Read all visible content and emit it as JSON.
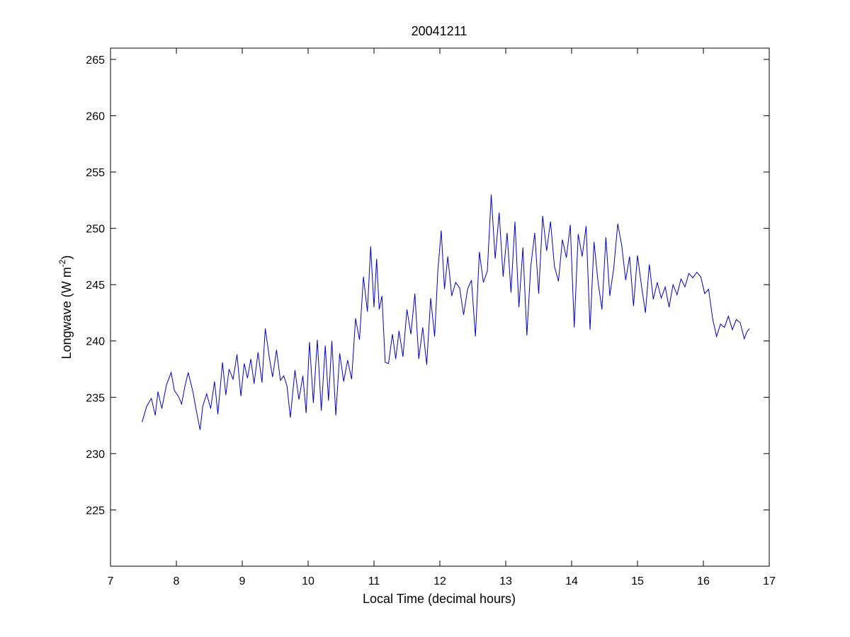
{
  "chart_data": {
    "type": "line",
    "title": "20041211",
    "xlabel": "Local Time (decimal hours)",
    "ylabel_main": "Longwave (W m",
    "ylabel_sup": "-2",
    "ylabel_close": ")",
    "xlim": [
      7,
      17
    ],
    "ylim": [
      220,
      266
    ],
    "xticks": [
      7,
      8,
      9,
      10,
      11,
      12,
      13,
      14,
      15,
      16,
      17
    ],
    "yticks": [
      225,
      230,
      235,
      240,
      245,
      250,
      255,
      260,
      265
    ],
    "grid": false,
    "line_color": "#0000cc",
    "series": [
      {
        "x": [
          7.48,
          7.55,
          7.62,
          7.68,
          7.72,
          7.78,
          7.85,
          7.92,
          7.97,
          8.03,
          8.08,
          8.13,
          8.18,
          8.25,
          8.3,
          8.36,
          8.4,
          8.46,
          8.52,
          8.58,
          8.63,
          8.7,
          8.75,
          8.8,
          8.86,
          8.92,
          8.98,
          9.03,
          9.08,
          9.13,
          9.18,
          9.24,
          9.3,
          9.35,
          9.41,
          9.46,
          9.52,
          9.58,
          9.63,
          9.68,
          9.73,
          9.8,
          9.86,
          9.92,
          9.97,
          10.02,
          10.08,
          10.14,
          10.2,
          10.26,
          10.31,
          10.36,
          10.42,
          10.48,
          10.54,
          10.6,
          10.66,
          10.72,
          10.78,
          10.84,
          10.9,
          10.95,
          11.0,
          11.04,
          11.08,
          11.12,
          11.17,
          11.22,
          11.28,
          11.33,
          11.38,
          11.44,
          11.5,
          11.56,
          11.62,
          11.68,
          11.74,
          11.8,
          11.86,
          11.92,
          11.97,
          12.02,
          12.07,
          12.12,
          12.18,
          12.24,
          12.3,
          12.36,
          12.42,
          12.48,
          12.54,
          12.6,
          12.66,
          12.72,
          12.78,
          12.84,
          12.9,
          12.96,
          13.02,
          13.08,
          13.14,
          13.2,
          13.26,
          13.32,
          13.38,
          13.44,
          13.5,
          13.56,
          13.62,
          13.68,
          13.74,
          13.8,
          13.86,
          13.92,
          13.98,
          14.04,
          14.1,
          14.16,
          14.22,
          14.28,
          14.34,
          14.4,
          14.46,
          14.52,
          14.58,
          14.64,
          14.7,
          14.76,
          14.82,
          14.88,
          14.94,
          15.0,
          15.06,
          15.12,
          15.18,
          15.24,
          15.3,
          15.36,
          15.42,
          15.48,
          15.54,
          15.6,
          15.66,
          15.72,
          15.78,
          15.84,
          15.9,
          15.96,
          16.02,
          16.08,
          16.14,
          16.2,
          16.26,
          16.32,
          16.38,
          16.44,
          16.5,
          16.56,
          16.62,
          16.66,
          16.7
        ],
        "y": [
          232.8,
          234.2,
          234.9,
          233.4,
          235.5,
          234.0,
          236.1,
          237.2,
          235.6,
          235.1,
          234.4,
          236.0,
          237.2,
          235.5,
          233.9,
          232.1,
          234.2,
          235.3,
          234.0,
          236.4,
          233.5,
          238.1,
          235.2,
          237.5,
          236.6,
          238.8,
          235.1,
          238.0,
          236.7,
          238.4,
          236.2,
          239.0,
          236.3,
          241.1,
          238.6,
          236.8,
          239.2,
          236.5,
          236.9,
          236.0,
          233.2,
          237.4,
          234.8,
          236.9,
          233.6,
          239.9,
          234.5,
          240.1,
          233.8,
          239.6,
          234.7,
          240.0,
          233.4,
          238.9,
          236.4,
          238.3,
          236.6,
          242.0,
          240.1,
          245.7,
          242.6,
          248.4,
          243.0,
          247.3,
          242.8,
          244.0,
          238.1,
          238.0,
          240.6,
          238.4,
          240.9,
          238.6,
          242.8,
          240.6,
          244.2,
          238.4,
          241.2,
          237.9,
          243.8,
          240.4,
          246.3,
          249.8,
          244.6,
          247.5,
          244.0,
          245.2,
          244.7,
          242.3,
          244.6,
          245.4,
          240.4,
          247.9,
          245.2,
          246.2,
          253.0,
          247.3,
          251.4,
          245.7,
          249.6,
          244.3,
          250.6,
          243.0,
          248.3,
          240.5,
          246.6,
          249.6,
          244.2,
          251.1,
          248.0,
          250.6,
          246.6,
          245.3,
          249.0,
          247.4,
          250.3,
          241.2,
          249.5,
          247.5,
          250.2,
          241.0,
          248.8,
          245.3,
          242.8,
          249.2,
          244.0,
          246.5,
          250.4,
          248.5,
          245.4,
          247.5,
          243.1,
          247.6,
          244.9,
          242.5,
          246.8,
          243.7,
          245.2,
          243.8,
          244.8,
          243.0,
          245.0,
          244.1,
          245.5,
          244.8,
          246.0,
          245.6,
          246.1,
          245.7,
          244.2,
          244.6,
          242.0,
          240.4,
          241.5,
          241.2,
          242.2,
          241.0,
          241.9,
          241.6,
          240.2,
          240.8,
          241.1
        ]
      }
    ]
  }
}
